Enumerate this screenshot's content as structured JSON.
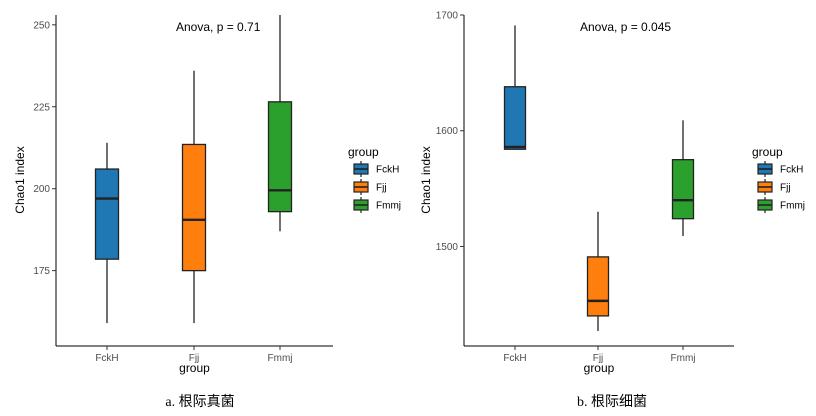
{
  "chart_data": [
    {
      "type": "box",
      "caption": "a. 根际真菌",
      "annotation": "Anova, p = 0.71",
      "xlabel": "group",
      "ylabel": "Chao1 index",
      "categories": [
        "FckH",
        "Fjj",
        "Fmmj"
      ],
      "ylim": [
        152,
        253
      ],
      "yticks": [
        175,
        200,
        225,
        250
      ],
      "boxes": [
        {
          "group": "FckH",
          "min": 159,
          "q1": 178.5,
          "median": 197,
          "q3": 206,
          "max": 214,
          "color": "#1f77b4"
        },
        {
          "group": "Fjj",
          "min": 159,
          "q1": 175,
          "median": 190.5,
          "q3": 213.5,
          "max": 236,
          "color": "#ff7f0e"
        },
        {
          "group": "Fmmj",
          "min": 187,
          "q1": 193,
          "median": 199.5,
          "q3": 226.5,
          "max": 253,
          "color": "#2ca02c"
        }
      ],
      "legend": {
        "title": "group",
        "position": "right",
        "entries": [
          "FckH",
          "Fjj",
          "Fmmj"
        ]
      },
      "grid": false
    },
    {
      "type": "box",
      "caption": "b. 根际细菌",
      "annotation": "Anova, p = 0.045",
      "xlabel": "group",
      "ylabel": "Chao1 index",
      "categories": [
        "FckH",
        "Fjj",
        "Fmmj"
      ],
      "ylim": [
        1414,
        1700
      ],
      "yticks": [
        1500,
        1600,
        1700
      ],
      "boxes": [
        {
          "group": "FckH",
          "min": 1584,
          "q1": 1584,
          "median": 1586,
          "q3": 1638,
          "max": 1691,
          "color": "#1f77b4"
        },
        {
          "group": "Fjj",
          "min": 1427,
          "q1": 1440,
          "median": 1453,
          "q3": 1491,
          "max": 1530,
          "color": "#ff7f0e"
        },
        {
          "group": "Fmmj",
          "min": 1509,
          "q1": 1524,
          "median": 1540,
          "q3": 1575,
          "max": 1609,
          "color": "#2ca02c"
        }
      ],
      "legend": {
        "title": "group",
        "position": "right",
        "entries": [
          "FckH",
          "Fjj",
          "Fmmj"
        ]
      },
      "grid": false
    }
  ]
}
